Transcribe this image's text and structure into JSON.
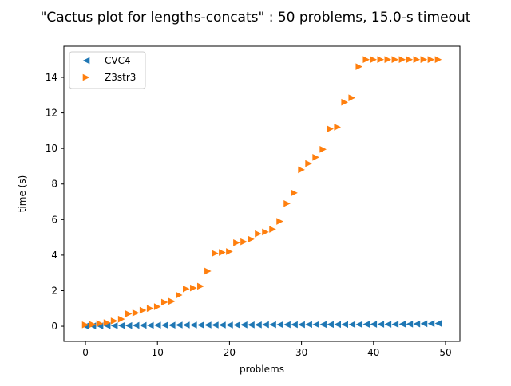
{
  "chart_data": {
    "type": "scatter",
    "title": "\"Cactus plot for lengths-concats\" : 50 problems, 15.0-s timeout",
    "xlabel": "problems",
    "ylabel": "time (s)",
    "xlim": [
      -3.0,
      52.0
    ],
    "ylim": [
      -0.85,
      15.75
    ],
    "xticks": [
      0,
      10,
      20,
      30,
      40,
      50
    ],
    "yticks": [
      0,
      2,
      4,
      6,
      8,
      10,
      12,
      14
    ],
    "grid": false,
    "legend_position": "top-left",
    "series": [
      {
        "name": "CVC4",
        "marker": "triangle-left",
        "color": "#1f77b4",
        "x": [
          0,
          1,
          2,
          3,
          4,
          5,
          6,
          7,
          8,
          9,
          10,
          11,
          12,
          13,
          14,
          15,
          16,
          17,
          18,
          19,
          20,
          21,
          22,
          23,
          24,
          25,
          26,
          27,
          28,
          29,
          30,
          31,
          32,
          33,
          34,
          35,
          36,
          37,
          38,
          39,
          40,
          41,
          42,
          43,
          44,
          45,
          46,
          47,
          48,
          49
        ],
        "y": [
          0.01,
          0.02,
          0.02,
          0.03,
          0.03,
          0.04,
          0.04,
          0.05,
          0.05,
          0.05,
          0.06,
          0.06,
          0.06,
          0.07,
          0.07,
          0.07,
          0.07,
          0.07,
          0.07,
          0.07,
          0.07,
          0.07,
          0.08,
          0.08,
          0.08,
          0.09,
          0.09,
          0.09,
          0.09,
          0.09,
          0.09,
          0.1,
          0.1,
          0.1,
          0.1,
          0.1,
          0.1,
          0.1,
          0.1,
          0.11,
          0.11,
          0.11,
          0.11,
          0.11,
          0.12,
          0.12,
          0.13,
          0.14,
          0.15,
          0.16
        ]
      },
      {
        "name": "Z3str3",
        "marker": "triangle-right",
        "color": "#ff7f0e",
        "x": [
          0,
          1,
          2,
          3,
          4,
          5,
          6,
          7,
          8,
          9,
          10,
          11,
          12,
          13,
          14,
          15,
          16,
          17,
          18,
          19,
          20,
          21,
          22,
          23,
          24,
          25,
          26,
          27,
          28,
          29,
          30,
          31,
          32,
          33,
          34,
          35,
          36,
          37,
          38,
          39,
          40,
          41,
          42,
          43,
          44,
          45,
          46,
          47,
          48,
          49
        ],
        "y": [
          0.08,
          0.1,
          0.15,
          0.2,
          0.3,
          0.4,
          0.7,
          0.75,
          0.9,
          1.0,
          1.1,
          1.35,
          1.4,
          1.75,
          2.1,
          2.15,
          2.25,
          3.1,
          4.1,
          4.15,
          4.2,
          4.7,
          4.75,
          4.9,
          5.2,
          5.3,
          5.45,
          5.9,
          6.9,
          7.5,
          8.8,
          9.15,
          9.5,
          9.95,
          11.1,
          11.2,
          12.6,
          12.85,
          14.6,
          15.0,
          15.0,
          15.0,
          15.0,
          15.0,
          15.0,
          15.0,
          15.0,
          15.0,
          15.0,
          15.0
        ]
      }
    ]
  }
}
